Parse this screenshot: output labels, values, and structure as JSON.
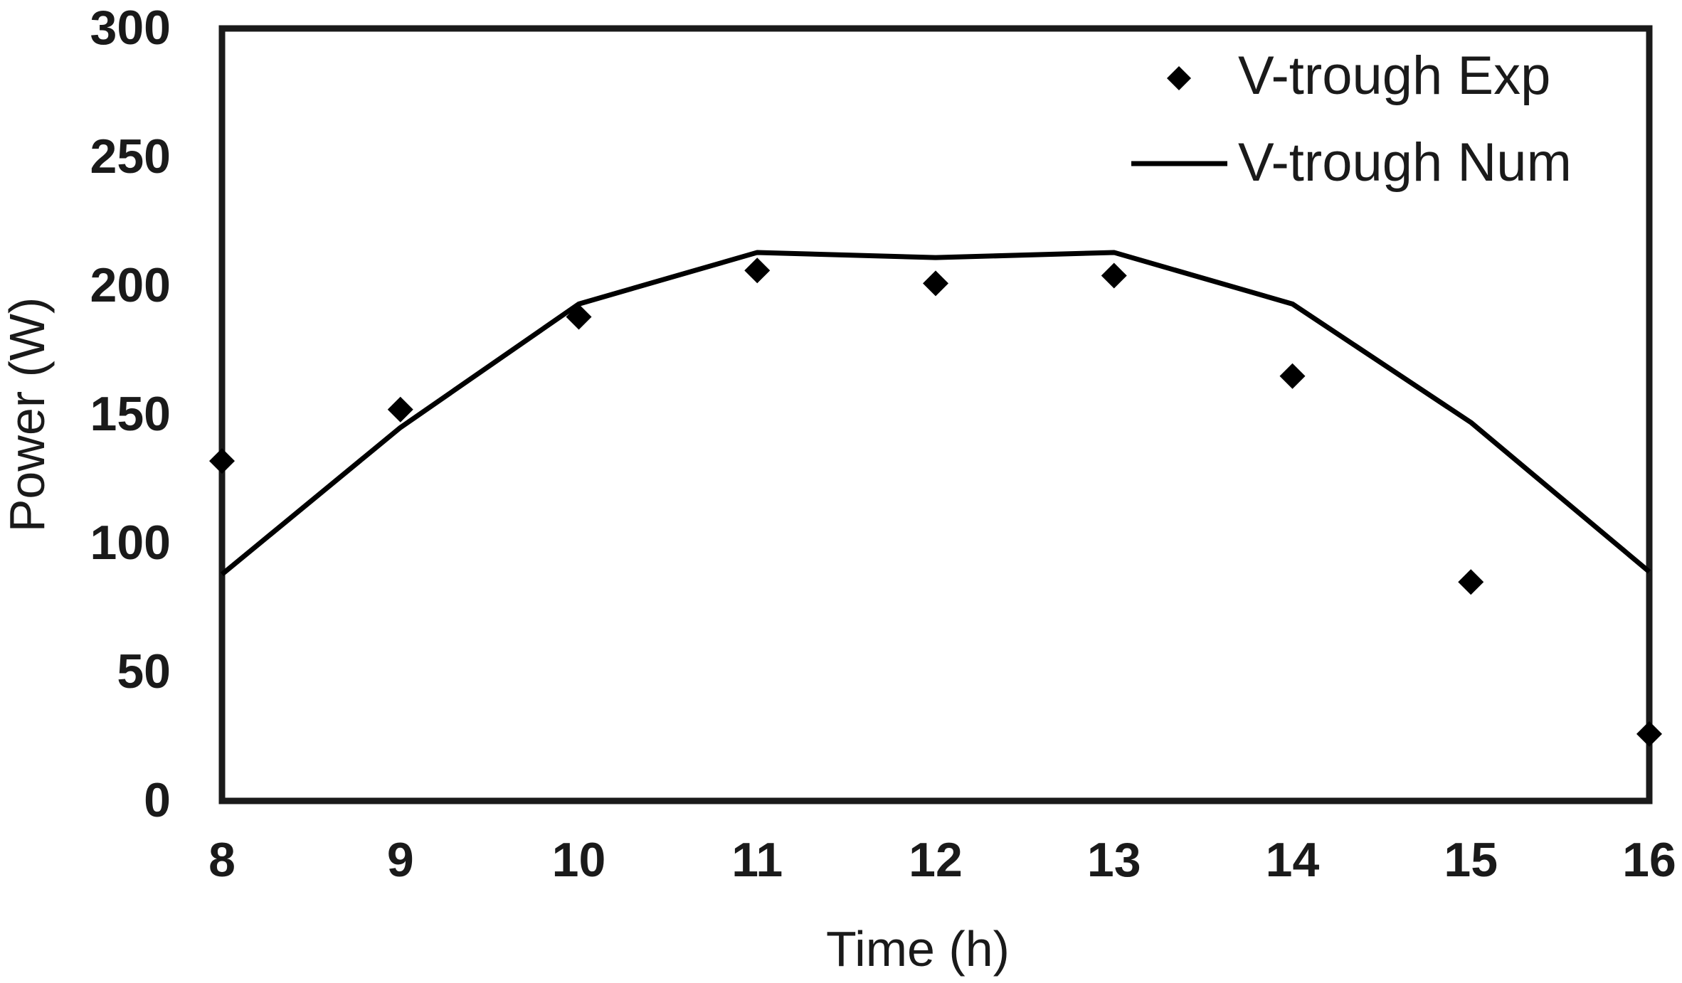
{
  "chart_data": {
    "type": "line",
    "title": "",
    "xlabel": "Time (h)",
    "ylabel": "Power (W)",
    "xlim": [
      8,
      16
    ],
    "ylim": [
      0,
      300
    ],
    "xticks": [
      8,
      9,
      10,
      11,
      12,
      13,
      14,
      15,
      16
    ],
    "yticks": [
      0,
      50,
      100,
      150,
      200,
      250,
      300
    ],
    "grid": false,
    "legend_position": "top-right",
    "series": [
      {
        "name": "V-trough Exp",
        "kind": "scatter",
        "marker": "diamond",
        "color": "#000000",
        "x": [
          8,
          9,
          10,
          11,
          12,
          13,
          14,
          15,
          16
        ],
        "y": [
          132,
          152,
          188,
          206,
          201,
          204,
          165,
          85,
          26
        ]
      },
      {
        "name": "V-trough Num",
        "kind": "line",
        "color": "#000000",
        "x": [
          8,
          9,
          10,
          11,
          12,
          13,
          14,
          15,
          16
        ],
        "y": [
          88,
          145,
          193,
          213,
          211,
          213,
          193,
          147,
          89
        ]
      }
    ]
  }
}
